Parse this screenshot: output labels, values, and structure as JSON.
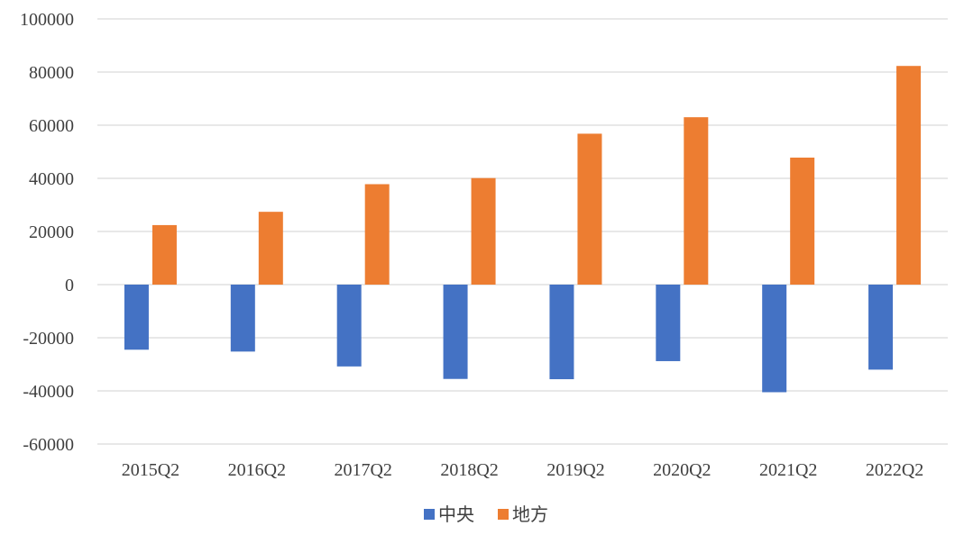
{
  "chart_data": {
    "type": "bar",
    "title": "",
    "xlabel": "",
    "ylabel": "",
    "categories": [
      "2015Q2",
      "2016Q2",
      "2017Q2",
      "2018Q2",
      "2019Q2",
      "2020Q2",
      "2021Q2",
      "2022Q2"
    ],
    "series": [
      {
        "name": "中央",
        "color": "#4472C4",
        "values": [
          -24500,
          -25200,
          -30800,
          -35500,
          -35600,
          -28800,
          -40500,
          -32000
        ]
      },
      {
        "name": "地方",
        "color": "#ED7D31",
        "values": [
          22400,
          27400,
          37800,
          40100,
          56800,
          63000,
          47800,
          82300
        ]
      }
    ],
    "ylim": [
      -60000,
      100000
    ],
    "yticks": [
      100000,
      80000,
      60000,
      40000,
      20000,
      0,
      -20000,
      -40000,
      -60000
    ],
    "grid": true,
    "legend_position": "bottom-center"
  }
}
